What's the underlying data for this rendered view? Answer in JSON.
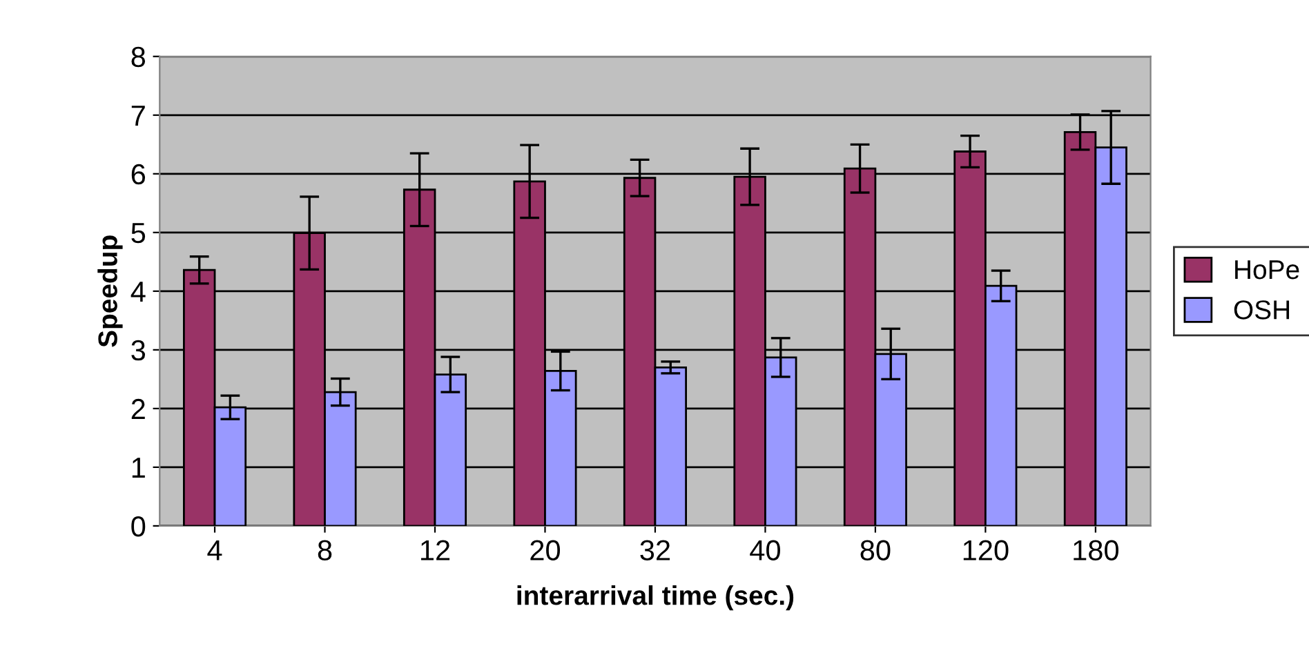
{
  "chart_data": {
    "type": "bar",
    "xlabel": "interarrival time (sec.)",
    "ylabel": "Speedup",
    "categories": [
      "4",
      "8",
      "12",
      "20",
      "32",
      "40",
      "80",
      "120",
      "180"
    ],
    "series": [
      {
        "name": "HoPe",
        "color": "#993366",
        "values": [
          4.36,
          4.99,
          5.73,
          5.87,
          5.93,
          5.95,
          6.09,
          6.38,
          6.71
        ],
        "errors": [
          0.23,
          0.62,
          0.62,
          0.62,
          0.31,
          0.48,
          0.41,
          0.27,
          0.3
        ]
      },
      {
        "name": "OSH",
        "color": "#9999ff",
        "values": [
          2.02,
          2.28,
          2.58,
          2.64,
          2.7,
          2.87,
          2.93,
          4.09,
          6.45
        ],
        "errors": [
          0.2,
          0.23,
          0.3,
          0.33,
          0.1,
          0.33,
          0.43,
          0.26,
          0.62
        ]
      }
    ],
    "ylim": [
      0,
      8
    ],
    "yticks": [
      0,
      1,
      2,
      3,
      4,
      5,
      6,
      7,
      8
    ],
    "grid": "y",
    "legend": "right"
  }
}
